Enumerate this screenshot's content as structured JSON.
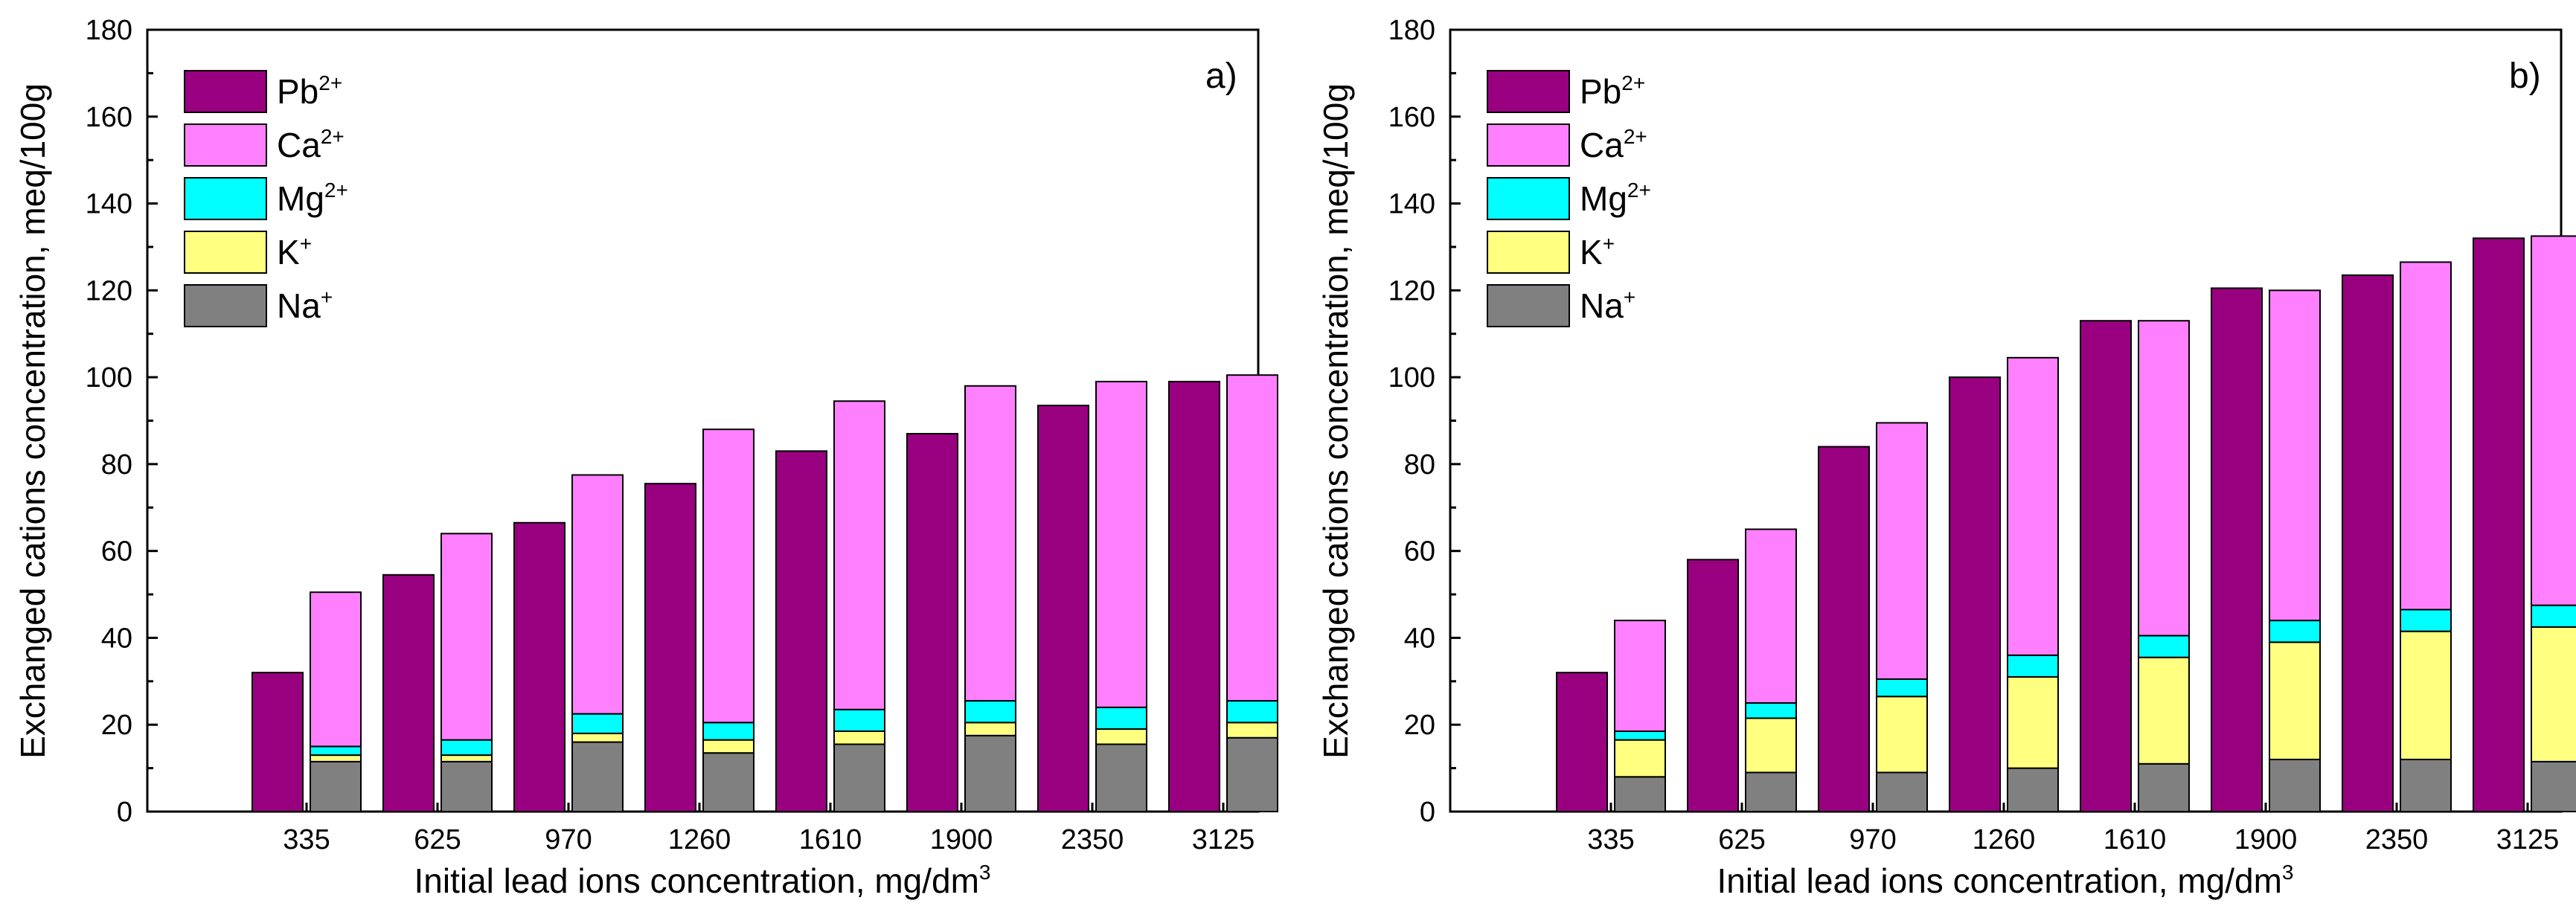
{
  "chart_data": [
    {
      "type": "bar",
      "stacked": true,
      "panel_label": "a)",
      "categories": [
        "335",
        "625",
        "970",
        "1260",
        "1610",
        "1900",
        "2350",
        "3125"
      ],
      "xlabel": "Initial lead ions concentration, mg/dm",
      "xlabel_sup": "3",
      "ylabel": "Exchanged cations concentration, meq/100g",
      "ylim": [
        0,
        180
      ],
      "yticks": [
        "0",
        "20",
        "40",
        "60",
        "80",
        "100",
        "120",
        "140",
        "160",
        "180"
      ],
      "legend_position": "top-left",
      "pb_bar": {
        "name": "Pb",
        "sup": "2+",
        "color": "#990080",
        "values": [
          32,
          54.5,
          66.5,
          75.5,
          83,
          87,
          93.5,
          99
        ]
      },
      "stack_series": [
        {
          "name": "Na",
          "sup": "+",
          "color": "#808080",
          "values": [
            11.5,
            11.5,
            16,
            13.5,
            15.5,
            17.5,
            15.5,
            17
          ]
        },
        {
          "name": "K",
          "sup": "+",
          "color": "#ffff80",
          "values": [
            1.5,
            1.5,
            2,
            3,
            3,
            3,
            3.5,
            3.5
          ]
        },
        {
          "name": "Mg",
          "sup": "2+",
          "color": "#00ffff",
          "values": [
            2,
            3.5,
            4.5,
            4,
            5,
            5,
            5,
            5
          ]
        },
        {
          "name": "Ca",
          "sup": "2+",
          "color": "#ff80ff",
          "values": [
            35.5,
            47.5,
            55,
            67.5,
            71,
            72.5,
            75,
            75
          ]
        }
      ]
    },
    {
      "type": "bar",
      "stacked": true,
      "panel_label": "b)",
      "categories": [
        "335",
        "625",
        "970",
        "1260",
        "1610",
        "1900",
        "2350",
        "3125"
      ],
      "xlabel": "Initial lead ions concentration, mg/dm",
      "xlabel_sup": "3",
      "ylabel": "Exchanged cations concentration, meq/100g",
      "ylim": [
        0,
        180
      ],
      "yticks": [
        "0",
        "20",
        "40",
        "60",
        "80",
        "100",
        "120",
        "140",
        "160",
        "180"
      ],
      "legend_position": "top-left",
      "pb_bar": {
        "name": "Pb",
        "sup": "2+",
        "color": "#990080",
        "values": [
          32,
          58,
          84,
          100,
          113,
          120.5,
          123.5,
          132
        ]
      },
      "stack_series": [
        {
          "name": "Na",
          "sup": "+",
          "color": "#808080",
          "values": [
            8,
            9,
            9,
            10,
            11,
            12,
            12,
            11.5
          ]
        },
        {
          "name": "K",
          "sup": "+",
          "color": "#ffff80",
          "values": [
            8.5,
            12.5,
            17.5,
            21,
            24.5,
            27,
            29.5,
            31
          ]
        },
        {
          "name": "Mg",
          "sup": "2+",
          "color": "#00ffff",
          "values": [
            2,
            3.5,
            4,
            5,
            5,
            5,
            5,
            5
          ]
        },
        {
          "name": "Ca",
          "sup": "2+",
          "color": "#ff80ff",
          "values": [
            25.5,
            40,
            59,
            68.5,
            72.5,
            76,
            80,
            85
          ]
        }
      ]
    }
  ]
}
